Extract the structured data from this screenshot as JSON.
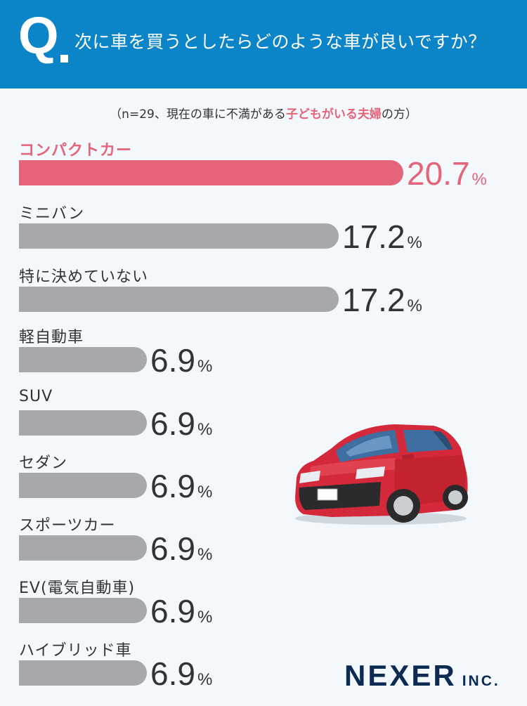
{
  "header": {
    "q_mark": "Q",
    "question": "次に車を買うとしたらどのような車が良いですか？"
  },
  "subtitle": {
    "pre": "（n=29、現在の車に不満がある",
    "highlight": "子どもがいる夫婦",
    "post": "の方）"
  },
  "colors": {
    "header_bg": "#0c85c8",
    "highlight": "#e66479",
    "bar_default": "#a7a8ac",
    "background": "#f3f8fc"
  },
  "chart_data": {
    "type": "bar",
    "orientation": "horizontal",
    "categories": [
      "コンパクトカー",
      "ミニバン",
      "特に決めていない",
      "軽自動車",
      "SUV",
      "セダン",
      "スポーツカー",
      "EV(電気自動車)",
      "ハイブリッド車"
    ],
    "values": [
      20.7,
      17.2,
      17.2,
      6.9,
      6.9,
      6.9,
      6.9,
      6.9,
      6.9
    ],
    "value_labels": [
      "20.7",
      "17.2",
      "17.2",
      "6.9",
      "6.9",
      "6.9",
      "6.9",
      "6.9",
      "6.9"
    ],
    "unit": "%",
    "highlight_index": 0
  },
  "logo": {
    "main": "NEXER",
    "suffix": "INC."
  },
  "illustration": {
    "name": "red-compact-car",
    "plate": ""
  }
}
